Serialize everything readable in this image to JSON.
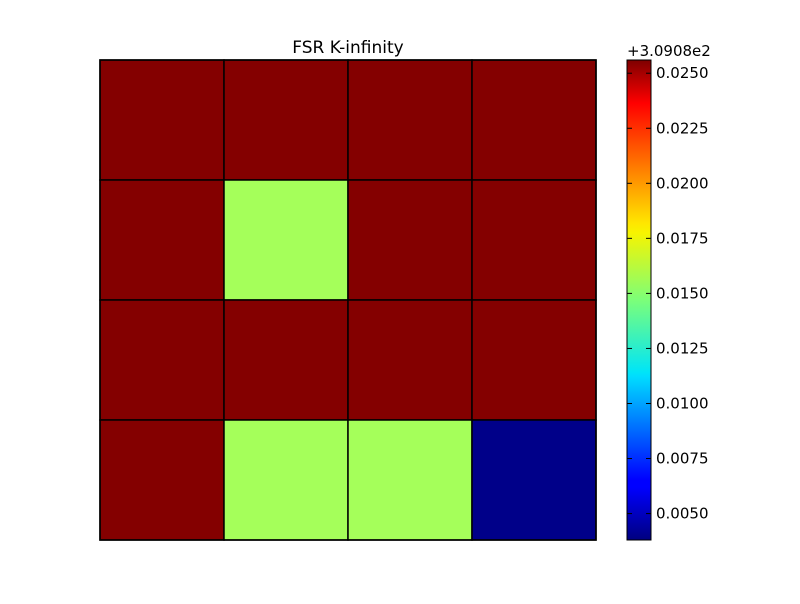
{
  "chart_data": {
    "type": "heatmap",
    "title": "FSR K-infinity",
    "xlabel": "",
    "ylabel": "",
    "grid": true,
    "rows": 4,
    "cols": 4,
    "values": [
      [
        0.0255,
        0.0255,
        0.0255,
        0.0255
      ],
      [
        0.0255,
        0.0155,
        0.0255,
        0.0255
      ],
      [
        0.0255,
        0.0255,
        0.0255,
        0.0255
      ],
      [
        0.0255,
        0.0155,
        0.0155,
        0.004
      ]
    ],
    "colormap": "jet",
    "colorbar": {
      "offset_label": "+3.0908e2",
      "vmin": 0.0038,
      "vmax": 0.0256,
      "ticks": [
        0.005,
        0.0075,
        0.01,
        0.0125,
        0.015,
        0.0175,
        0.02,
        0.0225,
        0.025
      ],
      "tick_labels": [
        "0.0050",
        "0.0075",
        "0.0100",
        "0.0125",
        "0.0150",
        "0.0175",
        "0.0200",
        "0.0225",
        "0.0250"
      ],
      "placement": "right"
    }
  }
}
